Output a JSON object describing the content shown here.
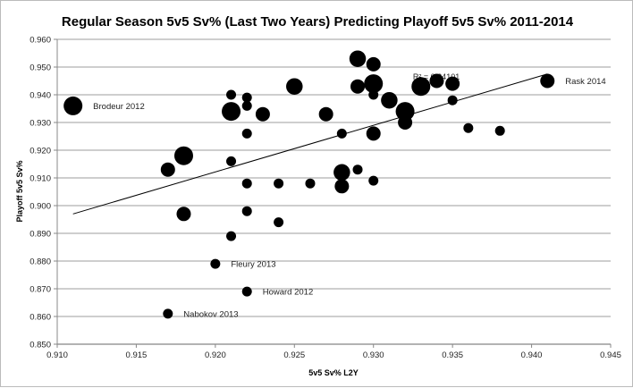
{
  "chart_data": {
    "type": "scatter",
    "title": "Regular Season 5v5 Sv% (Last Two Years) Predicting Playoff 5v5 Sv% 2011-2014",
    "xlabel": "5v5 Sv% L2Y",
    "ylabel": "Playoff 5v5 Sv%",
    "xlim": [
      0.91,
      0.945
    ],
    "ylim": [
      0.85,
      0.96
    ],
    "xticks": [
      "0.910",
      "0.915",
      "0.920",
      "0.925",
      "0.930",
      "0.935",
      "0.940",
      "0.945"
    ],
    "yticks": [
      "0.850",
      "0.860",
      "0.870",
      "0.880",
      "0.890",
      "0.900",
      "0.910",
      "0.920",
      "0.930",
      "0.940",
      "0.950",
      "0.960"
    ],
    "grid": "horizontal",
    "trendline": {
      "x": [
        0.911,
        0.941
      ],
      "y": [
        0.897,
        0.9475
      ],
      "label": "R² = 0.24101"
    },
    "points": [
      {
        "x": 0.911,
        "y": 0.936,
        "size": 3,
        "label": "Brodeur 2012"
      },
      {
        "x": 0.917,
        "y": 0.913,
        "size": 2
      },
      {
        "x": 0.918,
        "y": 0.918,
        "size": 3
      },
      {
        "x": 0.918,
        "y": 0.897,
        "size": 2
      },
      {
        "x": 0.917,
        "y": 0.861,
        "size": 1,
        "label": "Nabokov 2013"
      },
      {
        "x": 0.92,
        "y": 0.879,
        "size": 1,
        "label": "Fleury 2013"
      },
      {
        "x": 0.921,
        "y": 0.94,
        "size": 1
      },
      {
        "x": 0.921,
        "y": 0.934,
        "size": 3
      },
      {
        "x": 0.921,
        "y": 0.916,
        "size": 1
      },
      {
        "x": 0.921,
        "y": 0.889,
        "size": 1
      },
      {
        "x": 0.922,
        "y": 0.939,
        "size": 1
      },
      {
        "x": 0.922,
        "y": 0.936,
        "size": 1
      },
      {
        "x": 0.922,
        "y": 0.926,
        "size": 1
      },
      {
        "x": 0.922,
        "y": 0.908,
        "size": 1
      },
      {
        "x": 0.922,
        "y": 0.898,
        "size": 1
      },
      {
        "x": 0.922,
        "y": 0.869,
        "size": 1,
        "label": "Howard 2012"
      },
      {
        "x": 0.923,
        "y": 0.933,
        "size": 2
      },
      {
        "x": 0.924,
        "y": 0.908,
        "size": 1
      },
      {
        "x": 0.924,
        "y": 0.894,
        "size": 1
      },
      {
        "x": 0.925,
        "y": 0.943,
        "size": 2.5
      },
      {
        "x": 0.926,
        "y": 0.908,
        "size": 1
      },
      {
        "x": 0.927,
        "y": 0.933,
        "size": 2
      },
      {
        "x": 0.928,
        "y": 0.926,
        "size": 1
      },
      {
        "x": 0.928,
        "y": 0.912,
        "size": 2.5
      },
      {
        "x": 0.928,
        "y": 0.907,
        "size": 2
      },
      {
        "x": 0.929,
        "y": 0.953,
        "size": 2.5
      },
      {
        "x": 0.929,
        "y": 0.943,
        "size": 2
      },
      {
        "x": 0.929,
        "y": 0.913,
        "size": 1
      },
      {
        "x": 0.93,
        "y": 0.951,
        "size": 2
      },
      {
        "x": 0.93,
        "y": 0.944,
        "size": 3
      },
      {
        "x": 0.93,
        "y": 0.94,
        "size": 1
      },
      {
        "x": 0.93,
        "y": 0.926,
        "size": 2
      },
      {
        "x": 0.93,
        "y": 0.909,
        "size": 1
      },
      {
        "x": 0.931,
        "y": 0.938,
        "size": 2.5
      },
      {
        "x": 0.932,
        "y": 0.934,
        "size": 3
      },
      {
        "x": 0.932,
        "y": 0.93,
        "size": 2
      },
      {
        "x": 0.933,
        "y": 0.943,
        "size": 3
      },
      {
        "x": 0.934,
        "y": 0.945,
        "size": 2
      },
      {
        "x": 0.935,
        "y": 0.944,
        "size": 2
      },
      {
        "x": 0.935,
        "y": 0.938,
        "size": 1
      },
      {
        "x": 0.936,
        "y": 0.928,
        "size": 1
      },
      {
        "x": 0.938,
        "y": 0.927,
        "size": 1
      },
      {
        "x": 0.941,
        "y": 0.945,
        "size": 2,
        "label": "Rask 2014"
      }
    ]
  }
}
